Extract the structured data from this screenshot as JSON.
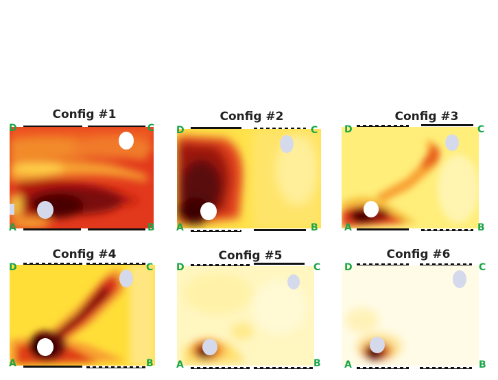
{
  "panels": [
    {
      "title": "Config #1",
      "corners": {
        "a": "A",
        "b": "B",
        "c": "C",
        "d": "D"
      },
      "top_edge": [
        "solid",
        "solid"
      ],
      "bottom_edge": [
        "solid",
        "solid"
      ]
    },
    {
      "title": "Config #2",
      "corners": {
        "a": "A",
        "b": "B",
        "c": "C",
        "d": "D"
      },
      "top_edge": [
        "solid",
        "dashed"
      ],
      "bottom_edge": [
        "dashed",
        "solid"
      ]
    },
    {
      "title": "Config #3",
      "corners": {
        "a": "A",
        "b": "B",
        "c": "C",
        "d": "D"
      },
      "top_edge": [
        "dashed",
        "solid"
      ],
      "bottom_edge": [
        "solid",
        "dashed"
      ]
    },
    {
      "title": "Config #4",
      "corners": {
        "a": "A",
        "b": "B",
        "c": "C",
        "d": "D"
      },
      "top_edge": [
        "dashed",
        "dashed"
      ],
      "bottom_edge": [
        "solid",
        "dashed"
      ]
    },
    {
      "title": "Config #5",
      "corners": {
        "a": "A",
        "b": "B",
        "c": "C",
        "d": "D"
      },
      "top_edge": [
        "dashed",
        "solid"
      ],
      "bottom_edge": [
        "dashed",
        "dashed"
      ]
    },
    {
      "title": "Config #6",
      "corners": {
        "a": "A",
        "b": "B",
        "c": "C",
        "d": "D"
      },
      "top_edge": [
        "dashed",
        "dashed"
      ],
      "bottom_edge": [
        "dashed",
        "dashed"
      ]
    }
  ],
  "colors": {
    "corner_label": "#1aa64a",
    "obstacle": "#d5d9ec",
    "heat_low": "#fffbe0",
    "heat_mid": "#ffe23a",
    "heat_high": "#e0301a",
    "heat_max": "#4a0606"
  }
}
